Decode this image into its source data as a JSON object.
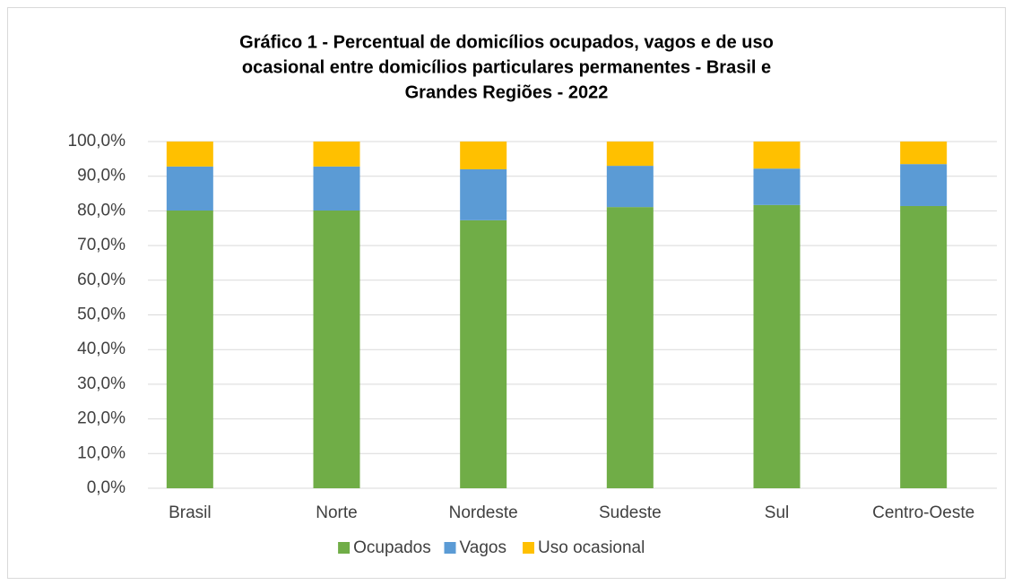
{
  "chart_data": {
    "type": "stacked_bar",
    "title": [
      "Gráfico 1 - Percentual de domicílios ocupados, vagos e  de uso",
      "ocasional entre domicílios particulares permanentes - Brasil e",
      "Grandes Regiões - 2022"
    ],
    "categories": [
      "Brasil",
      "Norte",
      "Nordeste",
      "Sudeste",
      "Sul",
      "Centro-Oeste"
    ],
    "series": [
      {
        "name": "Ocupados",
        "color": "#70ad47",
        "values": [
          80.1,
          80.1,
          77.3,
          81.1,
          81.7,
          81.4
        ]
      },
      {
        "name": "Vagos",
        "color": "#5b9bd5",
        "values": [
          12.7,
          12.7,
          14.7,
          11.9,
          10.5,
          12.1
        ]
      },
      {
        "name": "Uso ocasional",
        "color": "#ffc000",
        "values": [
          7.2,
          7.2,
          8.0,
          7.0,
          7.8,
          6.5
        ]
      }
    ],
    "ylim": [
      0,
      100
    ],
    "yticks": [
      {
        "value": 0,
        "label": "0,0%"
      },
      {
        "value": 10,
        "label": "10,0%"
      },
      {
        "value": 20,
        "label": "20,0%"
      },
      {
        "value": 30,
        "label": "30,0%"
      },
      {
        "value": 40,
        "label": "40,0%"
      },
      {
        "value": 50,
        "label": "50,0%"
      },
      {
        "value": 60,
        "label": "60,0%"
      },
      {
        "value": 70,
        "label": "70,0%"
      },
      {
        "value": 80,
        "label": "80,0%"
      },
      {
        "value": 90,
        "label": "90,0%"
      },
      {
        "value": 100,
        "label": "100,0%"
      }
    ],
    "grid": true,
    "legend": "bottom"
  }
}
